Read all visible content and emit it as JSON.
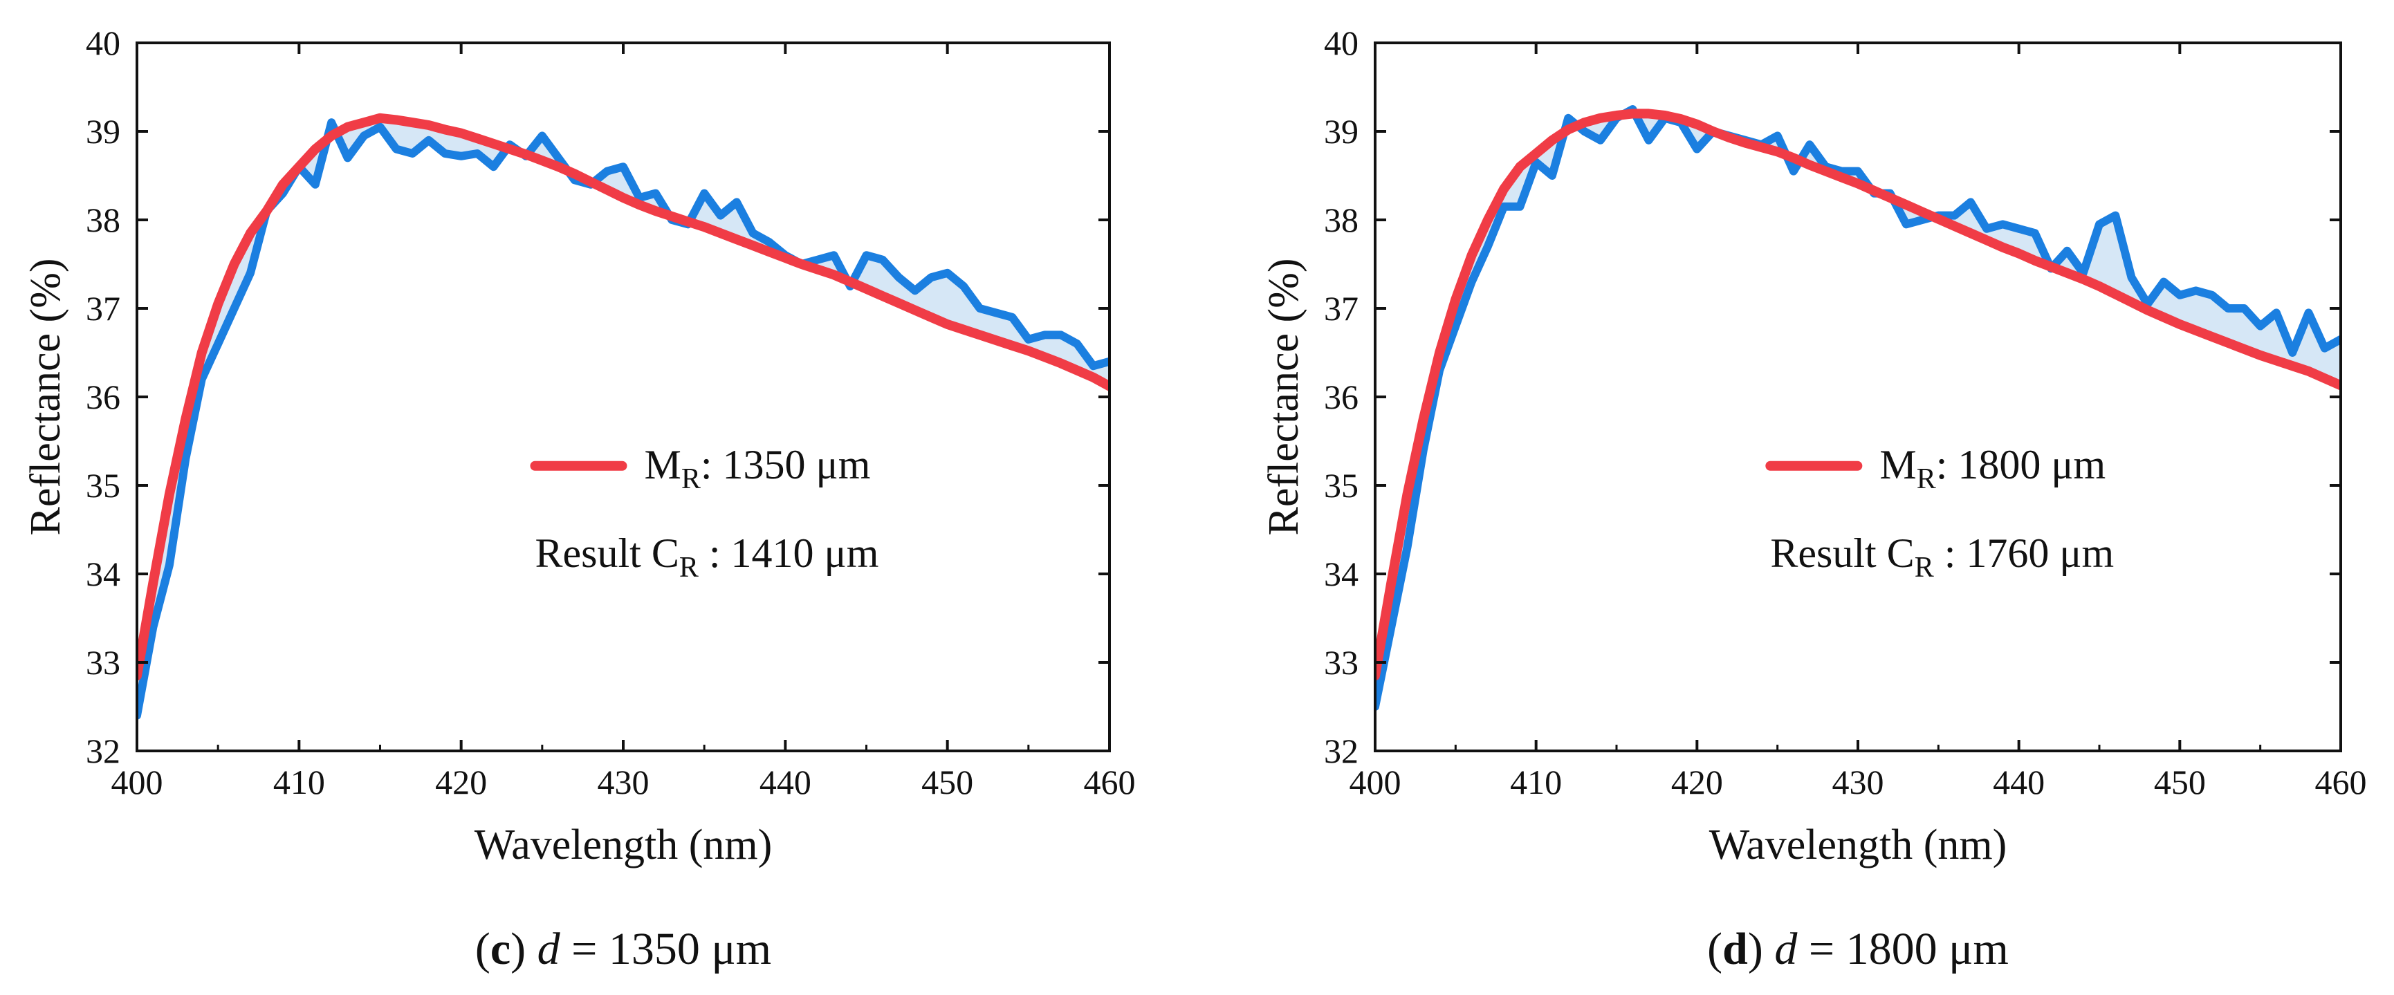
{
  "colors": {
    "model": "#f03c46",
    "measured": "#1b7fe0",
    "fill": "#cfe3f5",
    "axis": "#111111",
    "background": "#ffffff"
  },
  "chart_data": [
    {
      "id": "c",
      "type": "line",
      "xlabel": "Wavelength (nm)",
      "ylabel": "Reflectance (%)",
      "xlim": [
        400,
        460
      ],
      "ylim": [
        32,
        40
      ],
      "xticks": [
        400,
        410,
        420,
        430,
        440,
        450,
        460
      ],
      "yticks": [
        32,
        33,
        34,
        35,
        36,
        37,
        38,
        39,
        40
      ],
      "caption": {
        "letter": "c",
        "var": "d",
        "eq": " = 1350 μm"
      },
      "legend": {
        "model_label": "M",
        "model_sub": "R",
        "model_value": ": 1350 μm",
        "result_prefix": "Result C",
        "result_sub": "R",
        "result_value": " : 1410 μm"
      },
      "series": [
        {
          "name": "measured",
          "x": [
            400,
            401,
            402,
            403,
            404,
            405,
            406,
            407,
            408,
            409,
            410,
            411,
            412,
            413,
            414,
            415,
            416,
            417,
            418,
            419,
            420,
            421,
            422,
            423,
            424,
            425,
            426,
            427,
            428,
            429,
            430,
            431,
            432,
            433,
            434,
            435,
            436,
            437,
            438,
            439,
            440,
            441,
            442,
            443,
            444,
            445,
            446,
            447,
            448,
            449,
            450,
            451,
            452,
            453,
            454,
            455,
            456,
            457,
            458,
            459,
            460
          ],
          "y": [
            32.4,
            33.4,
            34.1,
            35.3,
            36.2,
            36.6,
            37.0,
            37.4,
            38.1,
            38.3,
            38.6,
            38.4,
            39.1,
            38.7,
            38.95,
            39.05,
            38.8,
            38.75,
            38.9,
            38.75,
            38.72,
            38.75,
            38.6,
            38.85,
            38.72,
            38.95,
            38.7,
            38.45,
            38.4,
            38.55,
            38.6,
            38.25,
            38.3,
            38.0,
            37.95,
            38.3,
            38.05,
            38.2,
            37.85,
            37.75,
            37.6,
            37.5,
            37.55,
            37.6,
            37.25,
            37.6,
            37.55,
            37.35,
            37.2,
            37.35,
            37.4,
            37.25,
            37.0,
            36.95,
            36.9,
            36.65,
            36.7,
            36.7,
            36.6,
            36.35,
            36.4
          ]
        },
        {
          "name": "model",
          "x": [
            400,
            401,
            402,
            403,
            404,
            405,
            406,
            407,
            408,
            409,
            410,
            411,
            412,
            413,
            414,
            415,
            416,
            417,
            418,
            419,
            420,
            421,
            422,
            423,
            424,
            425,
            426,
            427,
            428,
            429,
            430,
            431,
            432,
            433,
            434,
            435,
            436,
            437,
            438,
            439,
            440,
            441,
            442,
            443,
            444,
            445,
            446,
            447,
            448,
            449,
            450,
            451,
            452,
            453,
            454,
            455,
            456,
            457,
            458,
            459,
            460
          ],
          "y": [
            32.85,
            33.9,
            34.9,
            35.75,
            36.5,
            37.05,
            37.5,
            37.85,
            38.1,
            38.4,
            38.6,
            38.8,
            38.95,
            39.05,
            39.1,
            39.15,
            39.13,
            39.1,
            39.07,
            39.02,
            38.98,
            38.92,
            38.86,
            38.8,
            38.74,
            38.67,
            38.6,
            38.52,
            38.43,
            38.34,
            38.25,
            38.17,
            38.1,
            38.04,
            37.98,
            37.92,
            37.85,
            37.78,
            37.71,
            37.64,
            37.57,
            37.5,
            37.44,
            37.38,
            37.3,
            37.22,
            37.14,
            37.06,
            36.98,
            36.9,
            36.82,
            36.76,
            36.7,
            36.64,
            36.58,
            36.52,
            36.45,
            36.38,
            36.3,
            36.22,
            36.12
          ]
        }
      ]
    },
    {
      "id": "d",
      "type": "line",
      "xlabel": "Wavelength (nm)",
      "ylabel": "Reflectance (%)",
      "xlim": [
        400,
        460
      ],
      "ylim": [
        32,
        40
      ],
      "xticks": [
        400,
        410,
        420,
        430,
        440,
        450,
        460
      ],
      "yticks": [
        32,
        33,
        34,
        35,
        36,
        37,
        38,
        39,
        40
      ],
      "caption": {
        "letter": "d",
        "var": "d",
        "eq": " = 1800 μm"
      },
      "legend": {
        "model_label": "M",
        "model_sub": "R",
        "model_value": ": 1800 μm",
        "result_prefix": "Result C",
        "result_sub": "R",
        "result_value": " : 1760 μm"
      },
      "series": [
        {
          "name": "measured",
          "x": [
            400,
            401,
            402,
            403,
            404,
            405,
            406,
            407,
            408,
            409,
            410,
            411,
            412,
            413,
            414,
            415,
            416,
            417,
            418,
            419,
            420,
            421,
            422,
            423,
            424,
            425,
            426,
            427,
            428,
            429,
            430,
            431,
            432,
            433,
            434,
            435,
            436,
            437,
            438,
            439,
            440,
            441,
            442,
            443,
            444,
            445,
            446,
            447,
            448,
            449,
            450,
            451,
            452,
            453,
            454,
            455,
            456,
            457,
            458,
            459,
            460
          ],
          "y": [
            32.5,
            33.4,
            34.3,
            35.4,
            36.3,
            36.8,
            37.3,
            37.7,
            38.15,
            38.15,
            38.65,
            38.5,
            39.15,
            39.0,
            38.9,
            39.15,
            39.25,
            38.9,
            39.15,
            39.1,
            38.8,
            39.0,
            38.95,
            38.9,
            38.85,
            38.95,
            38.55,
            38.85,
            38.6,
            38.55,
            38.55,
            38.3,
            38.3,
            37.95,
            38.0,
            38.05,
            38.05,
            38.2,
            37.9,
            37.95,
            37.9,
            37.85,
            37.45,
            37.65,
            37.4,
            37.95,
            38.05,
            37.35,
            37.05,
            37.3,
            37.15,
            37.2,
            37.15,
            37.0,
            37.0,
            36.8,
            36.95,
            36.5,
            36.95,
            36.55,
            36.65
          ]
        },
        {
          "name": "model",
          "x": [
            400,
            401,
            402,
            403,
            404,
            405,
            406,
            407,
            408,
            409,
            410,
            411,
            412,
            413,
            414,
            415,
            416,
            417,
            418,
            419,
            420,
            421,
            422,
            423,
            424,
            425,
            426,
            427,
            428,
            429,
            430,
            431,
            432,
            433,
            434,
            435,
            436,
            437,
            438,
            439,
            440,
            441,
            442,
            443,
            444,
            445,
            446,
            447,
            448,
            449,
            450,
            451,
            452,
            453,
            454,
            455,
            456,
            457,
            458,
            459,
            460
          ],
          "y": [
            32.85,
            33.9,
            34.9,
            35.75,
            36.5,
            37.1,
            37.6,
            38.0,
            38.35,
            38.6,
            38.75,
            38.9,
            39.02,
            39.1,
            39.15,
            39.18,
            39.2,
            39.2,
            39.18,
            39.14,
            39.08,
            39.0,
            38.93,
            38.87,
            38.82,
            38.77,
            38.7,
            38.62,
            38.55,
            38.48,
            38.41,
            38.33,
            38.25,
            38.17,
            38.09,
            38.01,
            37.93,
            37.85,
            37.77,
            37.69,
            37.62,
            37.54,
            37.47,
            37.4,
            37.33,
            37.25,
            37.16,
            37.07,
            36.98,
            36.9,
            36.82,
            36.75,
            36.68,
            36.61,
            36.54,
            36.47,
            36.41,
            36.35,
            36.29,
            36.21,
            36.13
          ]
        }
      ]
    }
  ]
}
